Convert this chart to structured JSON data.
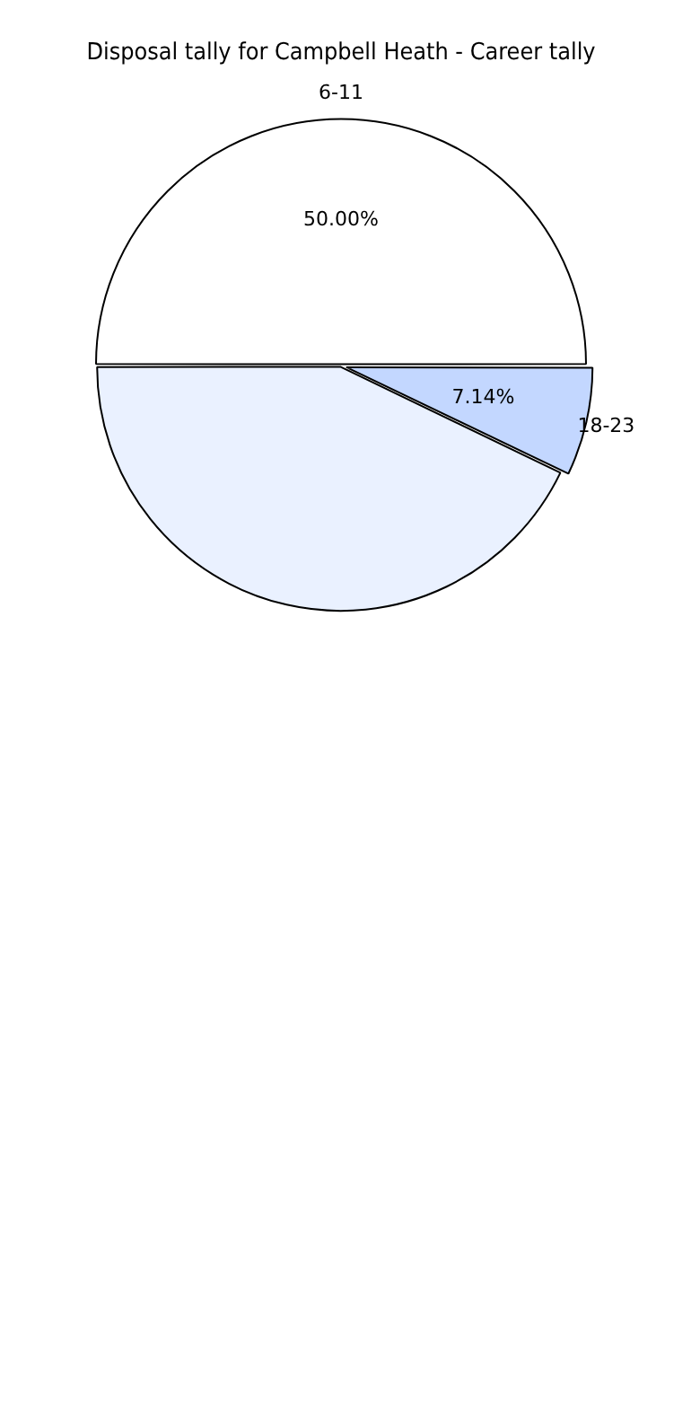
{
  "chart_data": {
    "type": "pie",
    "title": "Disposal tally for Campbell Heath - Career tally",
    "categories": [
      "6-11",
      "18-23",
      null
    ],
    "values": [
      50.0,
      7.14,
      42.86
    ],
    "colors": [
      "#ffffff",
      "#c3d7ff",
      "#eaf1ff"
    ],
    "value_labels": [
      "50.00%",
      "7.14%",
      null
    ],
    "legend": false
  }
}
